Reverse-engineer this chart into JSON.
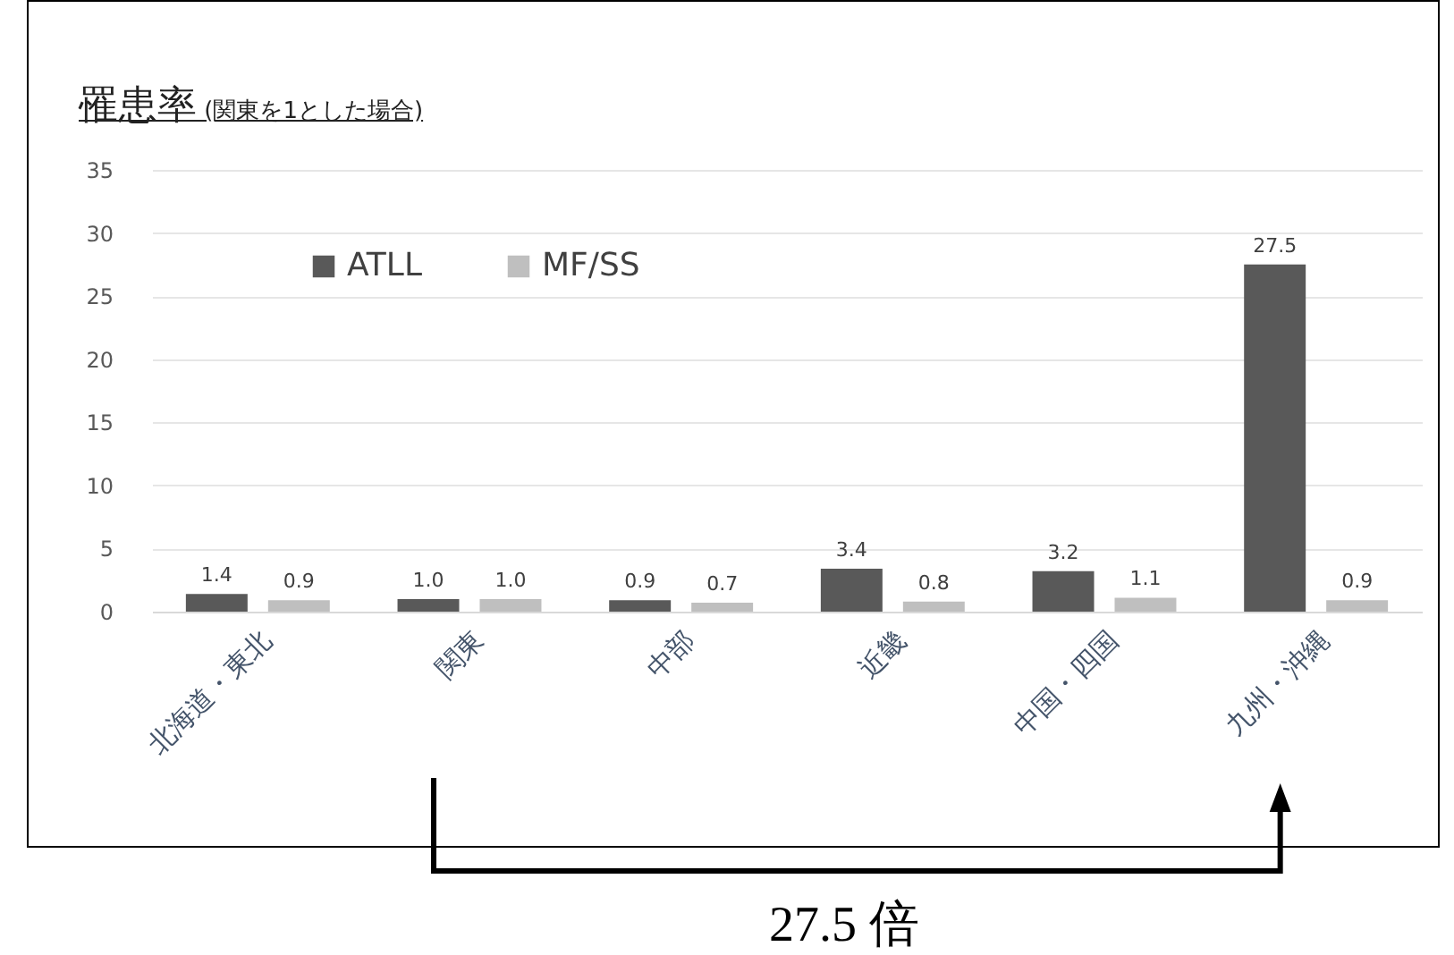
{
  "chart_data": {
    "type": "bar",
    "title": "罹患率",
    "subtitle": "(関東を1とした場合)",
    "categories": [
      "北海道・東北",
      "関東",
      "中部",
      "近畿",
      "中国・四国",
      "九州・沖縄"
    ],
    "series": [
      {
        "name": "ATLL",
        "color": "#595959",
        "values": [
          1.4,
          1.0,
          0.9,
          3.4,
          3.2,
          27.5
        ],
        "value_labels": [
          "1.4",
          "1.0",
          "0.9",
          "3.4",
          "3.2",
          "27.5"
        ]
      },
      {
        "name": "MF/SS",
        "color": "#bfbfbf",
        "values": [
          0.9,
          1.0,
          0.7,
          0.8,
          1.1,
          0.9
        ],
        "value_labels": [
          "0.9",
          "1.0",
          "0.7",
          "0.8",
          "1.1",
          "0.9"
        ]
      }
    ],
    "ylim": [
      0,
      35
    ],
    "yticks": [
      0,
      5,
      10,
      15,
      20,
      25,
      30,
      35
    ],
    "grid": "y",
    "legend": "top left",
    "annotations": [
      "27.5 倍"
    ]
  }
}
